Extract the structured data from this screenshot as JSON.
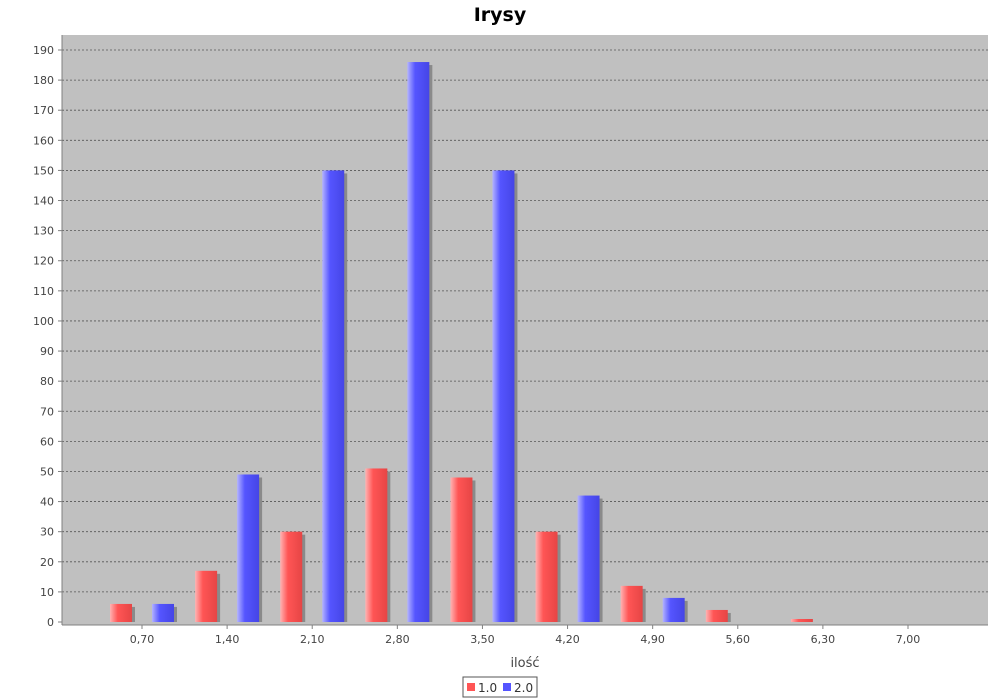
{
  "chart_data": {
    "type": "bar",
    "title": "Irysy",
    "xlabel": "ilość",
    "ylabel": "",
    "ylim": [
      0,
      190
    ],
    "yticks": [
      0,
      10,
      20,
      30,
      40,
      50,
      60,
      70,
      80,
      90,
      100,
      110,
      120,
      130,
      140,
      150,
      160,
      170,
      180,
      190
    ],
    "categories": [
      "0,70",
      "1,40",
      "2,10",
      "2,80",
      "3,50",
      "4,20",
      "4,90",
      "5,60",
      "6,30",
      "7,00"
    ],
    "series": [
      {
        "name": "1.0",
        "color": "#ff5555",
        "values": [
          6,
          17,
          30,
          51,
          48,
          30,
          12,
          4,
          1,
          0
        ]
      },
      {
        "name": "2.0",
        "color": "#5555ff",
        "values": [
          6,
          49,
          150,
          186,
          150,
          42,
          8,
          0,
          0,
          0
        ]
      }
    ],
    "grid": true,
    "legend_position": "bottom-center",
    "plot_background": "#c0c0c0"
  }
}
